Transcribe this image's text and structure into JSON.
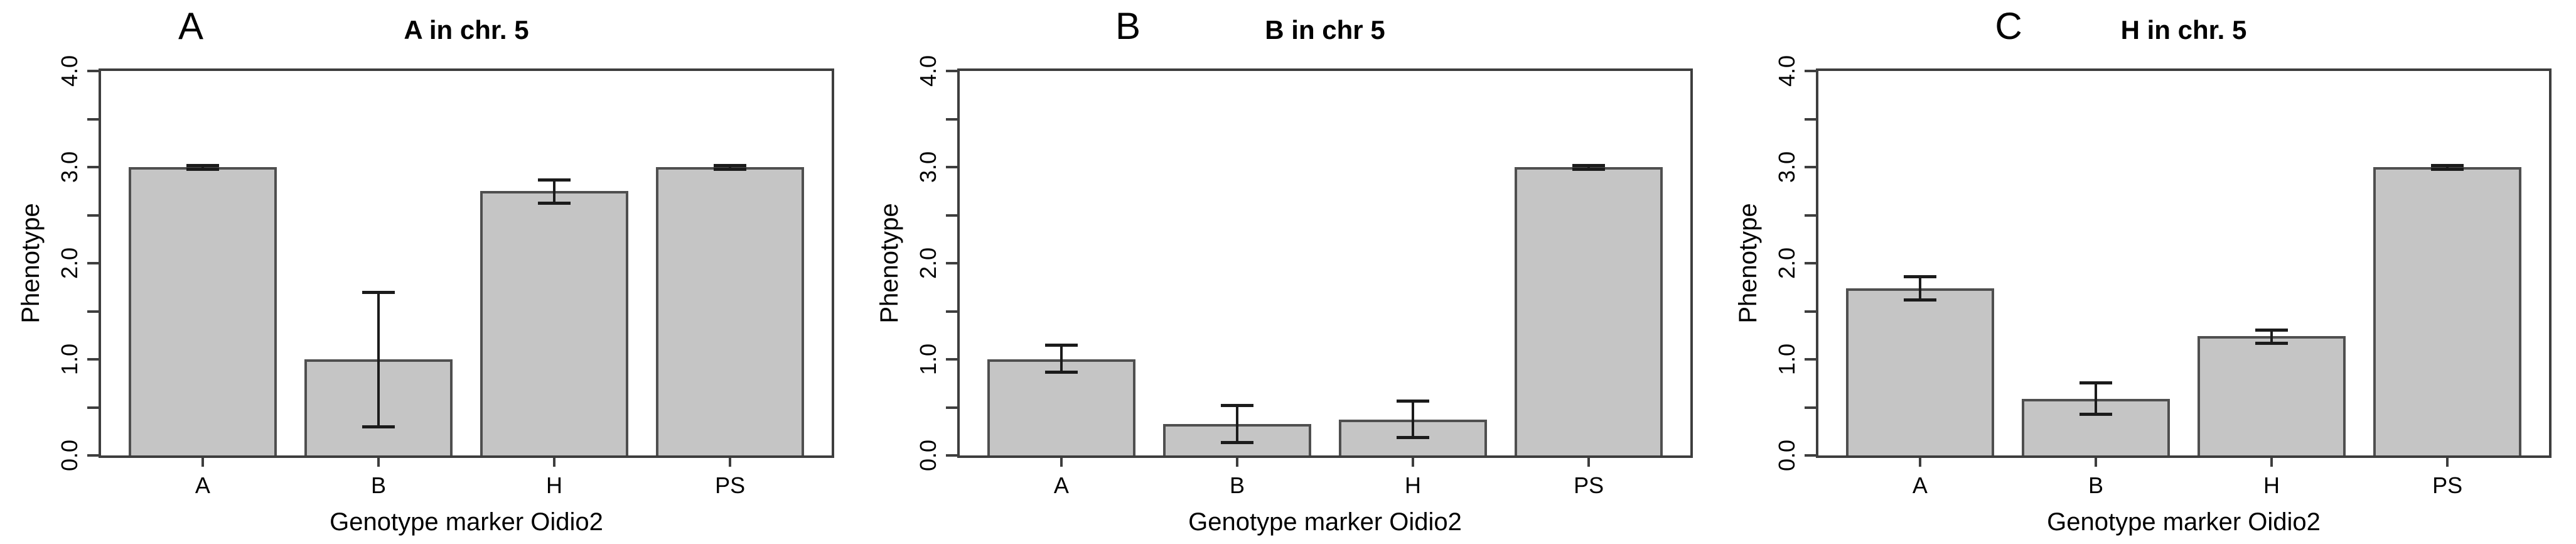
{
  "figure": {
    "background": "#ffffff",
    "bar_fill": "#c5c5c5",
    "bar_border": "#4f4f4f",
    "axis_color": "#3e3e3e",
    "error_bar_color": "#1b1b1b",
    "text_color": "#000000"
  },
  "chart_data": [
    {
      "type": "bar",
      "panel_label": "A",
      "title": "A in chr. 5",
      "xlabel": "Genotype marker Oidio2",
      "ylabel": "Phenotype",
      "ylim": [
        0,
        4
      ],
      "y_minor_tick_step": 0.5,
      "y_tick_values": [
        0.0,
        1.0,
        2.0,
        3.0,
        4.0
      ],
      "y_tick_labels": [
        "0.0",
        "1.0",
        "2.0",
        "3.0",
        "4.0"
      ],
      "grid": false,
      "legend": "none",
      "categories": [
        "A",
        "B",
        "H",
        "PS"
      ],
      "values": [
        3.0,
        1.0,
        2.75,
        3.0
      ],
      "error_low": [
        2.98,
        0.3,
        2.63,
        2.98
      ],
      "error_high": [
        3.02,
        1.7,
        2.87,
        3.02
      ]
    },
    {
      "type": "bar",
      "panel_label": "B",
      "title": "B in chr 5",
      "xlabel": "Genotype marker Oidio2",
      "ylabel": "Phenotype",
      "ylim": [
        0,
        4
      ],
      "y_minor_tick_step": 0.5,
      "y_tick_values": [
        0.0,
        1.0,
        2.0,
        3.0,
        4.0
      ],
      "y_tick_labels": [
        "0.0",
        "1.0",
        "2.0",
        "3.0",
        "4.0"
      ],
      "grid": false,
      "legend": "none",
      "categories": [
        "A",
        "B",
        "H",
        "PS"
      ],
      "values": [
        1.0,
        0.33,
        0.37,
        3.0
      ],
      "error_low": [
        0.87,
        0.14,
        0.19,
        2.98
      ],
      "error_high": [
        1.15,
        0.52,
        0.57,
        3.02
      ]
    },
    {
      "type": "bar",
      "panel_label": "C",
      "title": "H in chr. 5",
      "xlabel": "Genotype marker Oidio2",
      "ylabel": "Phenotype",
      "ylim": [
        0,
        4
      ],
      "y_minor_tick_step": 0.5,
      "y_tick_values": [
        0.0,
        1.0,
        2.0,
        3.0,
        4.0
      ],
      "y_tick_labels": [
        "0.0",
        "1.0",
        "2.0",
        "3.0",
        "4.0"
      ],
      "grid": false,
      "legend": "none",
      "categories": [
        "A",
        "B",
        "H",
        "PS"
      ],
      "values": [
        1.74,
        0.59,
        1.24,
        3.0
      ],
      "error_low": [
        1.62,
        0.43,
        1.17,
        2.98
      ],
      "error_high": [
        1.86,
        0.76,
        1.31,
        3.02
      ]
    }
  ]
}
